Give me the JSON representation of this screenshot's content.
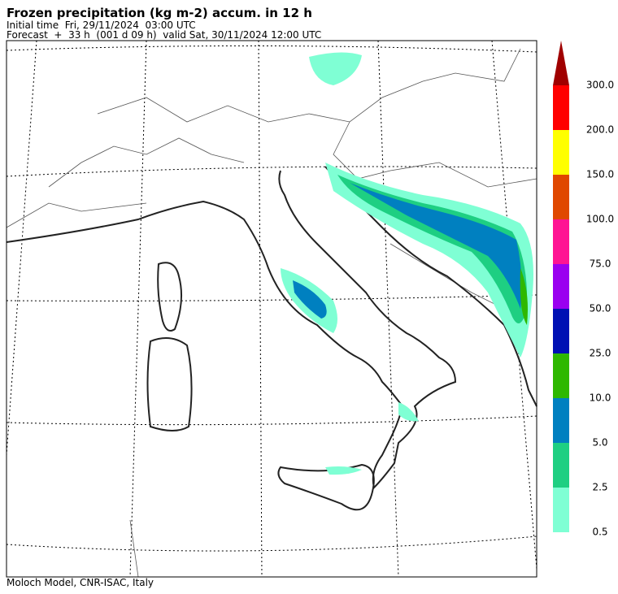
{
  "header": {
    "title": "Frozen precipitation (kg m-2) accum. in 12 h",
    "initial_time": "Initial time  Fri, 29/11/2024  03:00 UTC",
    "forecast": "Forecast  +  33 h  (001 d 09 h)  valid Sat, 30/11/2024 12:00 UTC"
  },
  "legend": {
    "labels": [
      "0.5",
      "2.5",
      "5.0",
      "10.0",
      "25.0",
      "50.0",
      "75.0",
      "100.0",
      "150.0",
      "200.0",
      "300.0"
    ],
    "colors": [
      "#7fffd4",
      "#1ecf82",
      "#0080c0",
      "#2eb800",
      "#0010b4",
      "#9a00f0",
      "#ff1493",
      "#e04800",
      "#ffff00",
      "#ff0000"
    ],
    "extend_color": "#a00000"
  },
  "footer": {
    "credit": "Moloch Model, CNR-ISAC, Italy"
  }
}
